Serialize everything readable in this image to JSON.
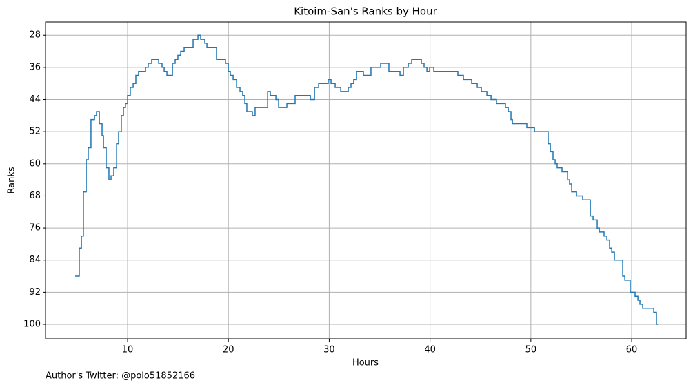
{
  "chart_data": {
    "type": "step",
    "title": "Kitoim-San's Ranks by Hour",
    "x_label": "Hours",
    "y_label": "Ranks",
    "annotation": "Author's Twitter: @polo51852166",
    "color": "#1f77b4",
    "grid": true,
    "xlim": [
      1.86,
      65.4
    ],
    "ylim": [
      103.6,
      24.7
    ],
    "xticks": [
      10,
      20,
      30,
      40,
      50,
      60
    ],
    "yticks": [
      28,
      36,
      44,
      52,
      60,
      68,
      76,
      84,
      92,
      100
    ],
    "x": [
      4.8,
      5.21,
      5.42,
      5.62,
      5.9,
      6.1,
      6.37,
      6.72,
      6.92,
      7.2,
      7.47,
      7.61,
      7.88,
      8.15,
      8.36,
      8.63,
      8.91,
      9.11,
      9.38,
      9.59,
      9.79,
      10.0,
      10.27,
      10.55,
      10.82,
      11.09,
      11.78,
      12.05,
      12.39,
      13.08,
      13.42,
      13.63,
      13.9,
      14.45,
      14.72,
      14.99,
      15.27,
      15.61,
      16.5,
      16.98,
      17.25,
      17.66,
      17.87,
      18.82,
      19.71,
      19.99,
      20.19,
      20.47,
      20.81,
      21.15,
      21.42,
      21.63,
      21.83,
      22.38,
      22.65,
      23.89,
      24.16,
      24.71,
      24.98,
      25.8,
      26.62,
      28.13,
      28.54,
      28.95,
      29.9,
      30.18,
      30.59,
      31.14,
      31.89,
      32.16,
      32.43,
      32.71,
      33.39,
      34.14,
      35.1,
      35.92,
      37.02,
      37.36,
      37.84,
      38.18,
      39.14,
      39.41,
      39.69,
      39.96,
      40.37,
      42.76,
      43.31,
      44.13,
      44.68,
      45.09,
      45.64,
      46.05,
      46.59,
      47.48,
      47.76,
      48.03,
      48.17,
      49.6,
      50.36,
      51.72,
      51.93,
      52.2,
      52.41,
      52.61,
      53.09,
      53.64,
      53.84,
      54.05,
      54.53,
      55.14,
      55.9,
      56.17,
      56.58,
      56.79,
      57.26,
      57.54,
      57.81,
      58.02,
      58.29,
      59.11,
      59.32,
      59.86,
      60.34,
      60.62,
      60.82,
      61.09,
      62.19,
      62.46,
      62.6
    ],
    "values": [
      88,
      81,
      78,
      67,
      59,
      56,
      49,
      48,
      47,
      50,
      53,
      56,
      61,
      64,
      63,
      61,
      55,
      52,
      48,
      46,
      45,
      43,
      41,
      40,
      38,
      37,
      36,
      35,
      34,
      35,
      36,
      37,
      38,
      35,
      34,
      33,
      32,
      31,
      29,
      28,
      29,
      30,
      31,
      34,
      35,
      37,
      38,
      39,
      41,
      42,
      43,
      45,
      47,
      48,
      46,
      42,
      43,
      44,
      46,
      45,
      43,
      44,
      41,
      40,
      39,
      40,
      41,
      42,
      41,
      40,
      39,
      37,
      38,
      36,
      35,
      37,
      38,
      36,
      35,
      34,
      35,
      36,
      37,
      36,
      37,
      38,
      39,
      40,
      41,
      42,
      43,
      44,
      45,
      46,
      47,
      49,
      50,
      51,
      52,
      55,
      57,
      59,
      60,
      61,
      62,
      64,
      65,
      67,
      68,
      69,
      73,
      74,
      76,
      77,
      78,
      79,
      81,
      82,
      84,
      88,
      89,
      92,
      93,
      94,
      95,
      96,
      97,
      100,
      100
    ]
  }
}
